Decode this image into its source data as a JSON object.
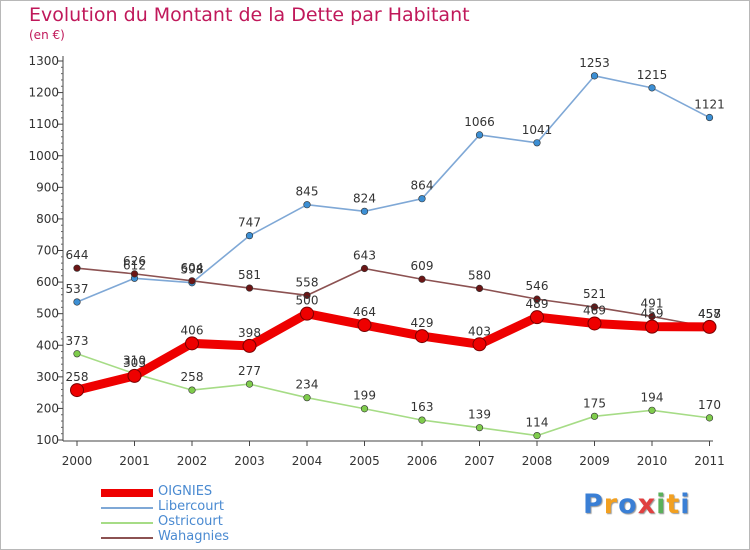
{
  "title": "Evolution du Montant de la Dette par Habitant",
  "subtitle": "(en €)",
  "logo": {
    "text": "Proxiti",
    "colors": [
      "#3a7fd5",
      "#f2a020",
      "#3a7fd5",
      "#e04040",
      "#5ab05a",
      "#f2a020",
      "#3a7fd5"
    ]
  },
  "chart_data": {
    "type": "line",
    "title": "Evolution du Montant de la Dette par Habitant",
    "subtitle": "(en €)",
    "x": [
      "2000",
      "2001",
      "2002",
      "2003",
      "2004",
      "2005",
      "2006",
      "2007",
      "2008",
      "2009",
      "2010",
      "2011"
    ],
    "ylim": [
      100,
      1300
    ],
    "yticks": [
      100,
      200,
      300,
      400,
      500,
      600,
      700,
      800,
      900,
      1000,
      1100,
      1200,
      1300
    ],
    "grid": false,
    "legend_position": "bottom-left",
    "series": [
      {
        "name": "OIGNIES",
        "color": "#ee0000",
        "emphasis": true,
        "values": [
          258,
          303,
          406,
          398,
          500,
          464,
          429,
          403,
          489,
          469,
          459,
          458
        ]
      },
      {
        "name": "Libercourt",
        "color": "#7fa8d6",
        "marker_color": "#3c8fd4",
        "values": [
          537,
          612,
          598,
          747,
          845,
          824,
          864,
          1066,
          1041,
          1253,
          1215,
          1121
        ]
      },
      {
        "name": "Ostricourt",
        "color": "#a6dc86",
        "marker_color": "#7fcc4c",
        "values": [
          373,
          310,
          258,
          277,
          234,
          199,
          163,
          139,
          114,
          175,
          194,
          170
        ]
      },
      {
        "name": "Wahagnies",
        "color": "#8c5252",
        "marker_color": "#6b1515",
        "values": [
          644,
          626,
          604,
          581,
          558,
          643,
          609,
          580,
          546,
          521,
          491,
          457
        ]
      }
    ]
  }
}
